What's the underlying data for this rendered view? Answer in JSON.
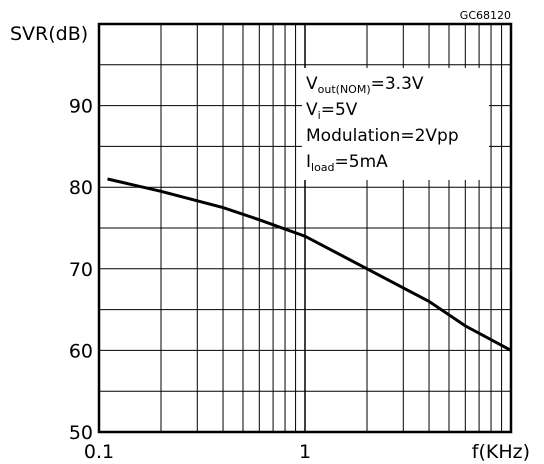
{
  "figure_id": "GC68120",
  "chart_data": {
    "type": "line",
    "ylabel": "SVR(dB)",
    "xlabel": "f(KHz)",
    "x_scale": "log",
    "xlim": [
      0.1,
      10
    ],
    "ylim": [
      50,
      100
    ],
    "grid": true,
    "x_tick_labels": [
      "0.1",
      "1"
    ],
    "y_tick_labels": [
      "50",
      "60",
      "70",
      "80",
      "90"
    ],
    "series": [
      {
        "x": [
          0.11,
          0.2,
          0.4,
          0.6,
          1,
          2,
          4,
          6,
          10
        ],
        "y": [
          81,
          79.5,
          77.5,
          76,
          74,
          70,
          66,
          63,
          60
        ],
        "color": "#000000"
      }
    ],
    "annotations": [
      {
        "main": "V",
        "sub": "out(NOM)",
        "rest": "=3.3V"
      },
      {
        "main": "V",
        "sub": "i",
        "rest": "=5V"
      },
      {
        "main": "Modulation=2Vpp",
        "sub": "",
        "rest": ""
      },
      {
        "main": "I",
        "sub": "load",
        "rest": "=5mA"
      }
    ]
  }
}
